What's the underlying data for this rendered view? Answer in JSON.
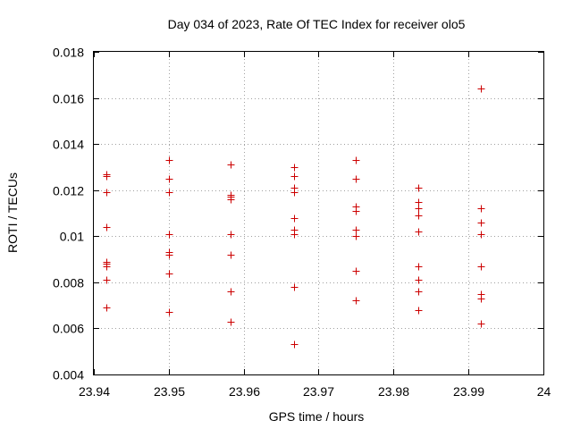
{
  "chart_data": {
    "type": "scatter",
    "title": "Day 034 of 2023, Rate Of TEC Index for receiver olo5",
    "xlabel": "GPS time / hours",
    "ylabel": "ROTI / TECUs",
    "xlim": [
      23.94,
      24.0
    ],
    "ylim": [
      0.004,
      0.018
    ],
    "xticks": [
      23.94,
      23.95,
      23.96,
      23.97,
      23.98,
      23.99,
      24.0
    ],
    "xtick_labels": [
      "23.94",
      "23.95",
      "23.96",
      "23.97",
      "23.98",
      "23.99",
      "24"
    ],
    "yticks": [
      0.004,
      0.006,
      0.008,
      0.01,
      0.012,
      0.014,
      0.016,
      0.018
    ],
    "ytick_labels": [
      "0.004",
      "0.006",
      "0.008",
      "0.01",
      "0.012",
      "0.014",
      "0.016",
      "0.018"
    ],
    "grid": true,
    "marker": "+",
    "color": "#cc0000",
    "series": [
      {
        "x": 23.9417,
        "y": [
          0.0127,
          0.0126,
          0.0119,
          0.0104,
          0.0089,
          0.0088,
          0.0087,
          0.0081,
          0.0069
        ]
      },
      {
        "x": 23.95,
        "y": [
          0.0133,
          0.0125,
          0.0119,
          0.0101,
          0.0093,
          0.0092,
          0.0084,
          0.0067
        ]
      },
      {
        "x": 23.9583,
        "y": [
          0.0131,
          0.0118,
          0.0117,
          0.0116,
          0.0101,
          0.0092,
          0.0076,
          0.0063
        ]
      },
      {
        "x": 23.9667,
        "y": [
          0.013,
          0.0126,
          0.0121,
          0.0119,
          0.0108,
          0.0103,
          0.0101,
          0.0078,
          0.0053
        ]
      },
      {
        "x": 23.975,
        "y": [
          0.0133,
          0.0125,
          0.0113,
          0.0111,
          0.0103,
          0.01,
          0.0085,
          0.0072
        ]
      },
      {
        "x": 23.9833,
        "y": [
          0.0121,
          0.0115,
          0.0112,
          0.0109,
          0.0102,
          0.0087,
          0.0081,
          0.0076,
          0.0068
        ]
      },
      {
        "x": 23.9917,
        "y": [
          0.0164,
          0.0112,
          0.0106,
          0.0101,
          0.0087,
          0.0075,
          0.0073,
          0.0062
        ]
      }
    ]
  }
}
